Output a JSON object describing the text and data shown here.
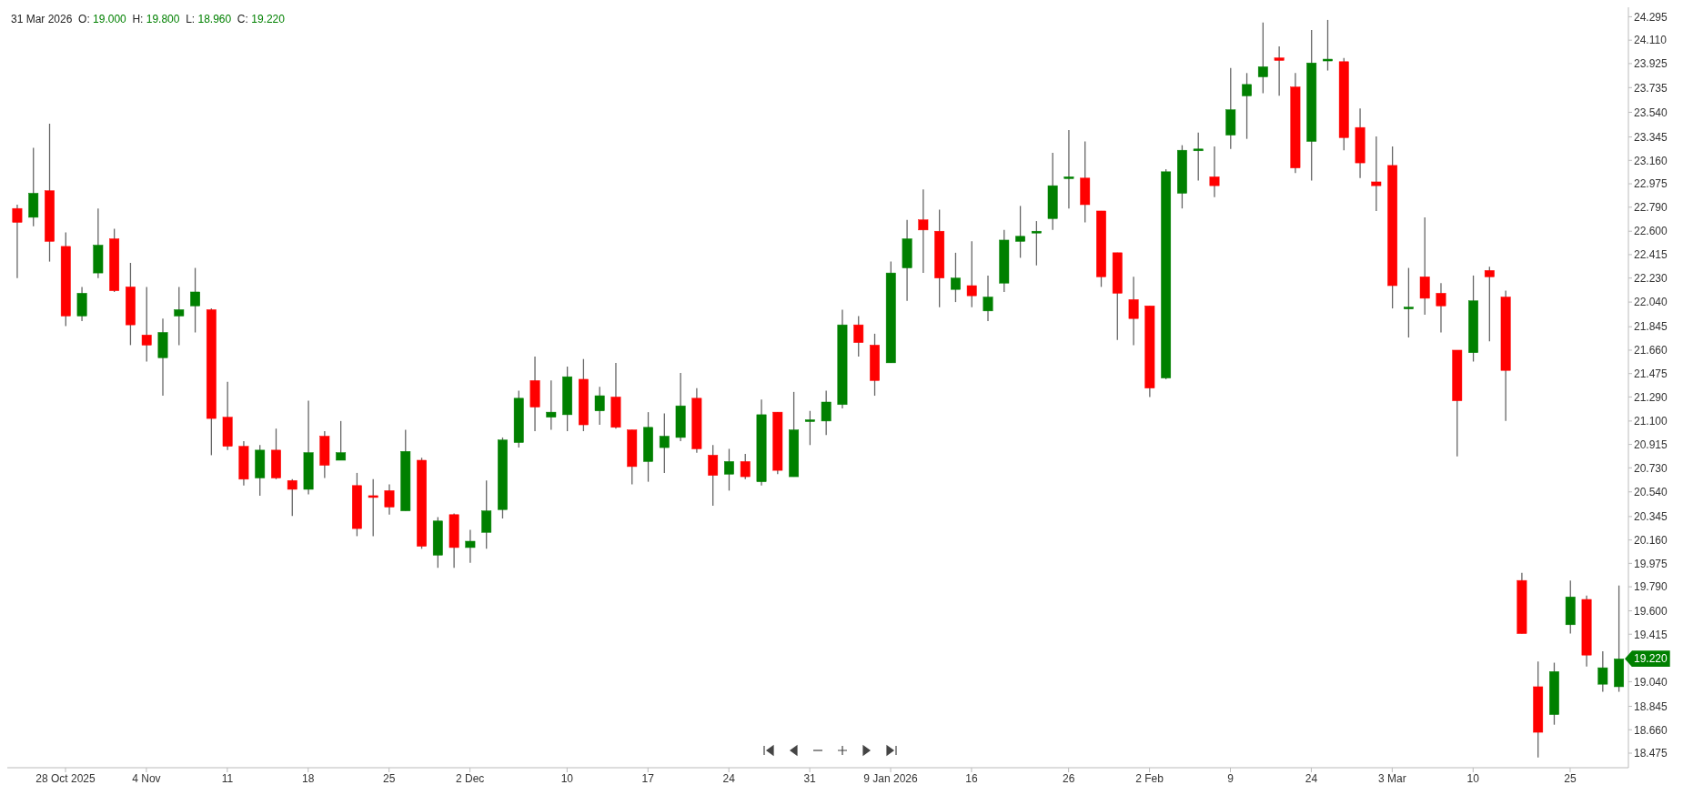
{
  "chart_data": {
    "type": "candlestick",
    "title": "31 Mar 2026  O: 19.000  H: 19.800  L: 18.960  C: 19.220",
    "categories": [
      null,
      null,
      null,
      "28 Oct 2025",
      null,
      null,
      null,
      null,
      "4 Nov",
      null,
      null,
      null,
      null,
      "11",
      null,
      null,
      null,
      null,
      "18",
      null,
      null,
      null,
      null,
      "25",
      null,
      null,
      null,
      null,
      "2 Dec",
      null,
      null,
      null,
      null,
      null,
      "10",
      null,
      null,
      null,
      null,
      "17",
      null,
      null,
      null,
      null,
      "24",
      null,
      null,
      null,
      null,
      "31",
      null,
      null,
      null,
      null,
      "9 Jan 2026",
      null,
      null,
      null,
      null,
      "16",
      null,
      null,
      null,
      null,
      null,
      "26",
      null,
      null,
      null,
      null,
      "2 Feb",
      null,
      null,
      null,
      null,
      "9",
      null,
      null,
      null,
      null,
      "24",
      null,
      null,
      null,
      null,
      "3 Mar",
      null,
      null,
      null,
      null,
      "10",
      null,
      null,
      null,
      null,
      null,
      "25",
      null,
      null,
      null
    ],
    "ohlc": [
      [
        22.78,
        22.81,
        22.23,
        22.67
      ],
      [
        22.71,
        23.26,
        22.64,
        22.9
      ],
      [
        22.92,
        23.45,
        22.36,
        22.52
      ],
      [
        22.48,
        22.59,
        21.85,
        21.93
      ],
      [
        21.93,
        22.16,
        21.89,
        22.11
      ],
      [
        22.27,
        22.78,
        22.23,
        22.49
      ],
      [
        22.54,
        22.62,
        22.12,
        22.13
      ],
      [
        22.16,
        22.35,
        21.7,
        21.86
      ],
      [
        21.78,
        22.16,
        21.57,
        21.7
      ],
      [
        21.6,
        21.91,
        21.3,
        21.8
      ],
      [
        21.93,
        22.16,
        21.7,
        21.98
      ],
      [
        22.01,
        22.31,
        21.8,
        22.12
      ],
      [
        21.98,
        21.99,
        20.83,
        21.12
      ],
      [
        21.13,
        21.41,
        20.87,
        20.9
      ],
      [
        20.9,
        20.94,
        20.59,
        20.64
      ],
      [
        20.65,
        20.91,
        20.51,
        20.87
      ],
      [
        20.87,
        21.04,
        20.64,
        20.65
      ],
      [
        20.63,
        20.64,
        20.35,
        20.56
      ],
      [
        20.56,
        21.26,
        20.52,
        20.85
      ],
      [
        20.98,
        21.02,
        20.65,
        20.75
      ],
      [
        20.79,
        21.1,
        20.79,
        20.85
      ],
      [
        20.59,
        20.69,
        20.19,
        20.25
      ],
      [
        20.51,
        20.64,
        20.19,
        20.5
      ],
      [
        20.55,
        20.6,
        20.36,
        20.42
      ],
      [
        20.39,
        21.03,
        20.39,
        20.86
      ],
      [
        20.79,
        20.81,
        20.09,
        20.11
      ],
      [
        20.04,
        20.34,
        19.94,
        20.31
      ],
      [
        20.36,
        20.37,
        19.94,
        20.1
      ],
      [
        20.1,
        20.24,
        19.98,
        20.15
      ],
      [
        20.22,
        20.63,
        20.09,
        20.39
      ],
      [
        20.4,
        20.97,
        20.33,
        20.95
      ],
      [
        20.93,
        21.34,
        20.89,
        21.28
      ],
      [
        21.42,
        21.61,
        21.02,
        21.21
      ],
      [
        21.13,
        21.42,
        21.03,
        21.17
      ],
      [
        21.15,
        21.53,
        21.02,
        21.45
      ],
      [
        21.43,
        21.59,
        21.02,
        21.07
      ],
      [
        21.18,
        21.37,
        21.07,
        21.3
      ],
      [
        21.29,
        21.56,
        21.04,
        21.05
      ],
      [
        21.03,
        21.03,
        20.6,
        20.74
      ],
      [
        20.78,
        21.17,
        20.62,
        21.05
      ],
      [
        20.89,
        21.16,
        20.69,
        20.98
      ],
      [
        20.97,
        21.48,
        20.94,
        21.22
      ],
      [
        21.28,
        21.36,
        20.85,
        20.88
      ],
      [
        20.83,
        20.91,
        20.43,
        20.67
      ],
      [
        20.68,
        20.88,
        20.55,
        20.78
      ],
      [
        20.78,
        20.84,
        20.64,
        20.66
      ],
      [
        20.62,
        21.27,
        20.59,
        21.15
      ],
      [
        21.17,
        21.17,
        20.68,
        20.71
      ],
      [
        20.66,
        21.33,
        20.66,
        21.03
      ],
      [
        21.1,
        21.18,
        20.91,
        21.11
      ],
      [
        21.1,
        21.34,
        20.99,
        21.25
      ],
      [
        21.23,
        21.98,
        21.2,
        21.86
      ],
      [
        21.86,
        21.93,
        21.61,
        21.72
      ],
      [
        21.7,
        21.79,
        21.3,
        21.42
      ],
      [
        21.56,
        22.36,
        21.56,
        22.27
      ],
      [
        22.31,
        22.69,
        22.05,
        22.54
      ],
      [
        22.69,
        22.93,
        22.27,
        22.61
      ],
      [
        22.6,
        22.77,
        22.0,
        22.23
      ],
      [
        22.14,
        22.43,
        22.04,
        22.23
      ],
      [
        22.17,
        22.52,
        22.0,
        22.09
      ],
      [
        21.97,
        22.25,
        21.89,
        22.08
      ],
      [
        22.19,
        22.61,
        22.12,
        22.53
      ],
      [
        22.52,
        22.8,
        22.39,
        22.56
      ],
      [
        22.59,
        22.68,
        22.33,
        22.6
      ],
      [
        22.7,
        23.22,
        22.61,
        22.96
      ],
      [
        23.02,
        23.4,
        22.78,
        23.03
      ],
      [
        23.02,
        23.31,
        22.67,
        22.81
      ],
      [
        22.76,
        22.76,
        22.16,
        22.24
      ],
      [
        22.43,
        22.43,
        21.74,
        22.11
      ],
      [
        22.06,
        22.24,
        21.7,
        21.91
      ],
      [
        22.01,
        22.01,
        21.29,
        21.36
      ],
      [
        21.44,
        23.09,
        21.43,
        23.07
      ],
      [
        22.9,
        23.28,
        22.78,
        23.24
      ],
      [
        23.24,
        23.38,
        23.0,
        23.25
      ],
      [
        23.03,
        23.27,
        22.87,
        22.96
      ],
      [
        23.36,
        23.89,
        23.25,
        23.56
      ],
      [
        23.67,
        23.85,
        23.33,
        23.76
      ],
      [
        23.82,
        24.25,
        23.69,
        23.9
      ],
      [
        23.97,
        24.06,
        23.67,
        23.95
      ],
      [
        23.74,
        23.85,
        23.06,
        23.1
      ],
      [
        23.31,
        24.19,
        23.0,
        23.93
      ],
      [
        23.95,
        24.27,
        23.87,
        23.96
      ],
      [
        23.94,
        23.97,
        23.24,
        23.34
      ],
      [
        23.42,
        23.57,
        23.02,
        23.14
      ],
      [
        22.99,
        23.35,
        22.76,
        22.96
      ],
      [
        23.12,
        23.27,
        21.99,
        22.17
      ],
      [
        21.99,
        22.31,
        21.76,
        22.0
      ],
      [
        22.24,
        22.71,
        21.94,
        22.07
      ],
      [
        22.11,
        22.19,
        21.8,
        22.01
      ],
      [
        21.66,
        21.66,
        20.82,
        21.26
      ],
      [
        21.64,
        22.25,
        21.57,
        22.05
      ],
      [
        22.29,
        22.32,
        21.73,
        22.24
      ],
      [
        22.08,
        22.13,
        21.1,
        21.5
      ],
      [
        19.84,
        19.9,
        19.42,
        19.42
      ],
      [
        19.0,
        19.2,
        18.44,
        18.64
      ],
      [
        18.78,
        19.19,
        18.7,
        19.12
      ],
      [
        19.49,
        19.84,
        19.42,
        19.71
      ],
      [
        19.69,
        19.72,
        19.16,
        19.25
      ],
      [
        19.02,
        19.28,
        18.96,
        19.15
      ],
      [
        19.0,
        19.8,
        18.96,
        19.22
      ]
    ],
    "colors": [
      "#ff0000",
      "#008000",
      "#ff0000",
      "#ff0000",
      "#008000",
      "#008000",
      "#ff0000",
      "#ff0000",
      "#ff0000",
      "#008000",
      "#008000",
      "#008000",
      "#ff0000",
      "#ff0000",
      "#ff0000",
      "#008000",
      "#ff0000",
      "#ff0000",
      "#008000",
      "#ff0000",
      "#008000",
      "#ff0000",
      "#ff0000",
      "#ff0000",
      "#008000",
      "#ff0000",
      "#008000",
      "#ff0000",
      "#008000",
      "#008000",
      "#008000",
      "#008000",
      "#ff0000",
      "#008000",
      "#008000",
      "#ff0000",
      "#008000",
      "#ff0000",
      "#ff0000",
      "#008000",
      "#008000",
      "#008000",
      "#ff0000",
      "#ff0000",
      "#008000",
      "#ff0000",
      "#008000",
      "#ff0000",
      "#008000",
      "#008000",
      "#008000",
      "#008000",
      "#ff0000",
      "#ff0000",
      "#008000",
      "#008000",
      "#ff0000",
      "#ff0000",
      "#008000",
      "#ff0000",
      "#008000",
      "#008000",
      "#008000",
      "#008000",
      "#008000",
      "#008000",
      "#ff0000",
      "#ff0000",
      "#ff0000",
      "#ff0000",
      "#ff0000",
      "#008000",
      "#008000",
      "#008000",
      "#ff0000",
      "#008000",
      "#008000",
      "#008000",
      "#ff0000",
      "#ff0000",
      "#008000",
      "#008000",
      "#ff0000",
      "#ff0000",
      "#ff0000",
      "#ff0000",
      "#008000",
      "#ff0000",
      "#ff0000",
      "#ff0000",
      "#008000",
      "#ff0000",
      "#ff0000",
      "#ff0000",
      "#ff0000",
      "#008000",
      "#008000",
      "#ff0000",
      "#008000",
      "#008000"
    ],
    "ylim": [
      18.36,
      24.37
    ],
    "yticks": [
      {
        "value": 24.295,
        "label": "24.295"
      },
      {
        "value": 24.11,
        "label": "24.110"
      },
      {
        "value": 23.925,
        "label": "23.925"
      },
      {
        "value": 23.735,
        "label": "23.735"
      },
      {
        "value": 23.54,
        "label": "23.540"
      },
      {
        "value": 23.345,
        "label": "23.345"
      },
      {
        "value": 23.16,
        "label": "23.160"
      },
      {
        "value": 22.975,
        "label": "22.975"
      },
      {
        "value": 22.79,
        "label": "22.790"
      },
      {
        "value": 22.6,
        "label": "22.600"
      },
      {
        "value": 22.415,
        "label": "22.415"
      },
      {
        "value": 22.23,
        "label": "22.230"
      },
      {
        "value": 22.04,
        "label": "22.040"
      },
      {
        "value": 21.845,
        "label": "21.845"
      },
      {
        "value": 21.66,
        "label": "21.660"
      },
      {
        "value": 21.475,
        "label": "21.475"
      },
      {
        "value": 21.29,
        "label": "21.290"
      },
      {
        "value": 21.1,
        "label": "21.100"
      },
      {
        "value": 20.915,
        "label": "20.915"
      },
      {
        "value": 20.73,
        "label": "20.730"
      },
      {
        "value": 20.54,
        "label": "20.540"
      },
      {
        "value": 20.345,
        "label": "20.345"
      },
      {
        "value": 20.16,
        "label": "20.160"
      },
      {
        "value": 19.975,
        "label": "19.975"
      },
      {
        "value": 19.79,
        "label": "19.790"
      },
      {
        "value": 19.6,
        "label": "19.600"
      },
      {
        "value": 19.415,
        "label": "19.415"
      },
      {
        "value": 19.04,
        "label": "19.040"
      },
      {
        "value": 18.845,
        "label": "18.845"
      },
      {
        "value": 18.66,
        "label": "18.660"
      },
      {
        "value": 18.475,
        "label": "18.475"
      }
    ],
    "annotations": [
      "19.220"
    ]
  }
}
